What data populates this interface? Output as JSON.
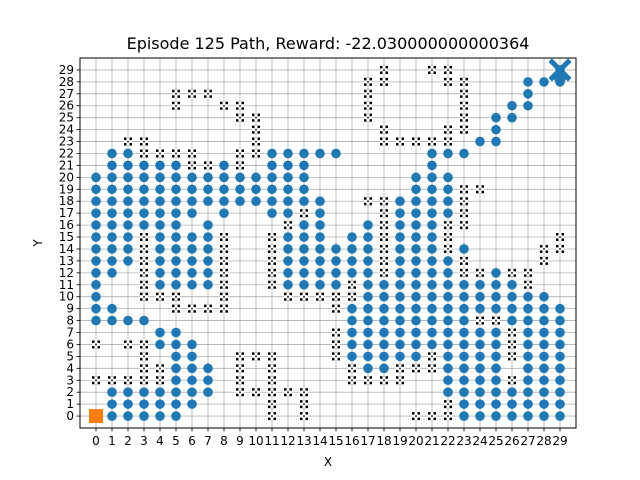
{
  "chart_data": {
    "type": "scatter",
    "title": "Episode 125 Path, Reward: -22.030000000000364",
    "xlabel": "X",
    "ylabel": "Y",
    "xlim": [
      -1,
      30
    ],
    "ylim": [
      -1,
      30
    ],
    "x_ticks": [
      "0",
      "1",
      "2",
      "3",
      "4",
      "5",
      "6",
      "7",
      "8",
      "9",
      "10",
      "11",
      "12",
      "13",
      "14",
      "15",
      "16",
      "17",
      "18",
      "19",
      "20",
      "21",
      "22",
      "23",
      "24",
      "25",
      "26",
      "27",
      "28",
      "29"
    ],
    "y_ticks": [
      "0",
      "1",
      "2",
      "3",
      "4",
      "5",
      "6",
      "7",
      "8",
      "9",
      "10",
      "11",
      "12",
      "13",
      "14",
      "15",
      "16",
      "17",
      "18",
      "19",
      "20",
      "21",
      "22",
      "23",
      "24",
      "25",
      "26",
      "27",
      "28",
      "29"
    ],
    "grid": true,
    "colors": {
      "path": "#1f77b4",
      "start": "#ff7f0e",
      "goal": "#1f77b4",
      "obstacle_outer": "#000000",
      "obstacle_inner": "#ffffff"
    },
    "obstacle_rows": [
      {
        "y": 29,
        "x": [
          18,
          21,
          22
        ]
      },
      {
        "y": 28,
        "x": [
          17,
          18,
          22,
          23
        ]
      },
      {
        "y": 27,
        "x": [
          5,
          6,
          7,
          17,
          23
        ]
      },
      {
        "y": 26,
        "x": [
          5,
          8,
          9,
          17,
          23
        ]
      },
      {
        "y": 25,
        "x": [
          9,
          10,
          17,
          23
        ]
      },
      {
        "y": 24,
        "x": [
          10,
          18,
          22,
          23
        ]
      },
      {
        "y": 23,
        "x": [
          2,
          3,
          10,
          18,
          19,
          20,
          21,
          22
        ]
      },
      {
        "y": 22,
        "x": [
          3,
          4,
          5,
          6,
          9,
          10
        ]
      },
      {
        "y": 21,
        "x": [
          6,
          7,
          9
        ]
      },
      {
        "y": 19,
        "x": [
          23,
          24
        ]
      },
      {
        "y": 18,
        "x": [
          17,
          18,
          23
        ]
      },
      {
        "y": 17,
        "x": [
          13,
          18,
          23
        ]
      },
      {
        "y": 16,
        "x": [
          12,
          18,
          22,
          23
        ]
      },
      {
        "y": 15,
        "x": [
          3,
          8,
          11,
          18,
          22,
          29
        ]
      },
      {
        "y": 14,
        "x": [
          3,
          8,
          11,
          18,
          22,
          28,
          29
        ]
      },
      {
        "y": 13,
        "x": [
          3,
          8,
          11,
          18,
          23,
          28
        ]
      },
      {
        "y": 12,
        "x": [
          3,
          8,
          11,
          18,
          23,
          24,
          26,
          27
        ]
      },
      {
        "y": 11,
        "x": [
          3,
          8,
          11,
          16,
          27
        ]
      },
      {
        "y": 10,
        "x": [
          3,
          4,
          5,
          8,
          12,
          13,
          14,
          15,
          16
        ]
      },
      {
        "y": 9,
        "x": [
          5,
          6,
          7,
          8,
          15
        ]
      },
      {
        "y": 8,
        "x": [
          24,
          25
        ]
      },
      {
        "y": 7,
        "x": [
          15,
          26
        ]
      },
      {
        "y": 6,
        "x": [
          0,
          2,
          3,
          15,
          26
        ]
      },
      {
        "y": 5,
        "x": [
          3,
          9,
          10,
          11,
          15,
          21,
          26
        ]
      },
      {
        "y": 4,
        "x": [
          3,
          4,
          9,
          11,
          16,
          19,
          20,
          21
        ]
      },
      {
        "y": 3,
        "x": [
          0,
          1,
          2,
          3,
          4,
          9,
          11,
          16,
          17,
          18,
          19,
          26
        ]
      },
      {
        "y": 2,
        "x": [
          9,
          10,
          11,
          12,
          13
        ]
      },
      {
        "y": 1,
        "x": [
          11,
          13,
          22
        ]
      },
      {
        "y": 0,
        "x": [
          11,
          13,
          20,
          21,
          22
        ]
      }
    ],
    "path_rows": [
      {
        "y": 29,
        "x": [
          29
        ]
      },
      {
        "y": 28,
        "x": [
          27,
          28,
          29
        ]
      },
      {
        "y": 27,
        "x": [
          27
        ]
      },
      {
        "y": 26,
        "x": [
          26,
          27
        ]
      },
      {
        "y": 25,
        "x": [
          25,
          26
        ]
      },
      {
        "y": 24,
        "x": [
          25
        ]
      },
      {
        "y": 23,
        "x": [
          24,
          25
        ]
      },
      {
        "y": 22,
        "x": [
          1,
          2,
          11,
          12,
          13,
          14,
          15,
          21,
          22,
          23
        ]
      },
      {
        "y": 21,
        "x": [
          1,
          2,
          3,
          4,
          5,
          8,
          11,
          12,
          13,
          21
        ]
      },
      {
        "y": 20,
        "x": [
          0,
          1,
          2,
          3,
          4,
          5,
          6,
          7,
          8,
          9,
          10,
          11,
          12,
          13,
          20,
          21,
          22
        ]
      },
      {
        "y": 19,
        "x": [
          0,
          1,
          2,
          3,
          4,
          5,
          6,
          7,
          8,
          9,
          10,
          11,
          12,
          13,
          20,
          21,
          22
        ]
      },
      {
        "y": 18,
        "x": [
          0,
          1,
          2,
          3,
          4,
          5,
          6,
          7,
          8,
          9,
          10,
          11,
          12,
          13,
          14,
          19,
          20,
          21,
          22
        ]
      },
      {
        "y": 17,
        "x": [
          0,
          1,
          2,
          3,
          4,
          5,
          6,
          8,
          11,
          12,
          14,
          19,
          20,
          21,
          22
        ]
      },
      {
        "y": 16,
        "x": [
          0,
          1,
          2,
          3,
          4,
          5,
          7,
          13,
          14,
          17,
          19,
          20,
          21
        ]
      },
      {
        "y": 15,
        "x": [
          0,
          1,
          2,
          4,
          5,
          6,
          7,
          12,
          13,
          14,
          16,
          17,
          19,
          20,
          21
        ]
      },
      {
        "y": 14,
        "x": [
          0,
          1,
          2,
          4,
          5,
          6,
          7,
          12,
          13,
          14,
          15,
          16,
          17,
          19,
          20,
          21,
          23
        ]
      },
      {
        "y": 13,
        "x": [
          0,
          1,
          2,
          4,
          5,
          6,
          7,
          12,
          13,
          14,
          15,
          16,
          17,
          19,
          20,
          21,
          22
        ]
      },
      {
        "y": 12,
        "x": [
          0,
          1,
          4,
          5,
          6,
          7,
          12,
          13,
          14,
          15,
          16,
          17,
          19,
          20,
          21,
          22,
          25
        ]
      },
      {
        "y": 11,
        "x": [
          0,
          4,
          5,
          6,
          7,
          12,
          13,
          14,
          15,
          17,
          18,
          19,
          20,
          21,
          22,
          23,
          24,
          25,
          26
        ]
      },
      {
        "y": 10,
        "x": [
          0,
          17,
          18,
          19,
          20,
          21,
          22,
          23,
          24,
          25,
          26,
          27,
          28
        ]
      },
      {
        "y": 9,
        "x": [
          0,
          1,
          16,
          17,
          18,
          19,
          20,
          21,
          22,
          23,
          24,
          25,
          26,
          27,
          28,
          29
        ]
      },
      {
        "y": 8,
        "x": [
          0,
          1,
          2,
          3,
          16,
          17,
          18,
          19,
          20,
          21,
          22,
          23,
          26,
          27,
          28,
          29
        ]
      },
      {
        "y": 7,
        "x": [
          4,
          5,
          16,
          17,
          18,
          19,
          20,
          21,
          22,
          23,
          24,
          25,
          27,
          28,
          29
        ]
      },
      {
        "y": 6,
        "x": [
          4,
          5,
          6,
          16,
          17,
          18,
          19,
          20,
          21,
          22,
          23,
          24,
          25,
          27,
          28,
          29
        ]
      },
      {
        "y": 5,
        "x": [
          5,
          6,
          16,
          17,
          18,
          19,
          20,
          22,
          23,
          24,
          25,
          27,
          28,
          29
        ]
      },
      {
        "y": 4,
        "x": [
          5,
          6,
          7,
          17,
          18,
          22,
          23,
          24,
          25,
          27,
          28,
          29
        ]
      },
      {
        "y": 3,
        "x": [
          5,
          6,
          7,
          22,
          23,
          24,
          25,
          27,
          28,
          29
        ]
      },
      {
        "y": 2,
        "x": [
          1,
          2,
          3,
          4,
          5,
          6,
          7,
          22,
          23,
          24,
          25,
          26,
          27,
          28,
          29
        ]
      },
      {
        "y": 1,
        "x": [
          1,
          2,
          3,
          4,
          5,
          6,
          23,
          24,
          25,
          26,
          27,
          28,
          29
        ]
      },
      {
        "y": 0,
        "x": [
          0,
          1,
          2,
          3,
          4,
          5,
          23,
          24,
          25,
          26,
          27,
          28,
          29
        ]
      }
    ],
    "start": {
      "x": 0,
      "y": 0
    },
    "goal": {
      "x": 29,
      "y": 29
    }
  }
}
